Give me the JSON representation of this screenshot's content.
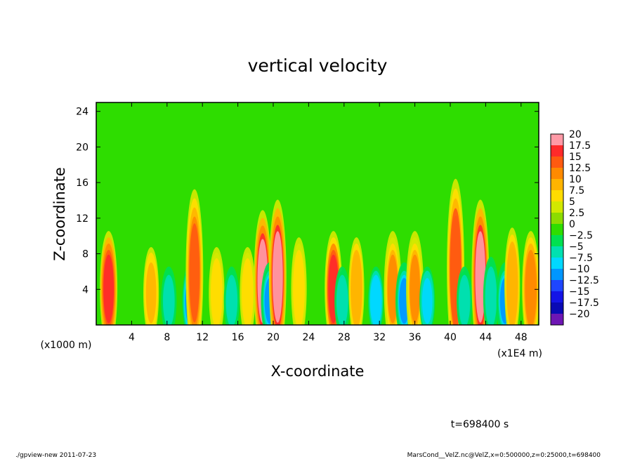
{
  "chart_data": {
    "type": "heatmap",
    "title": "vertical velocity",
    "xlabel": "X-coordinate",
    "ylabel": "Z-coordinate",
    "x_unit": "(x1E4 m)",
    "y_unit": "(x1000 m)",
    "xlim": [
      0,
      50
    ],
    "ylim": [
      0,
      25
    ],
    "x_ticks": [
      4,
      8,
      12,
      16,
      20,
      24,
      28,
      32,
      36,
      40,
      44,
      48
    ],
    "y_ticks": [
      4,
      8,
      12,
      16,
      20,
      24
    ],
    "colorbar": {
      "levels": [
        "20",
        "17.5",
        "15",
        "12.5",
        "10",
        "7.5",
        "5",
        "2.5",
        "0",
        "-2.5",
        "-5",
        "-7.5",
        "-10",
        "-12.5",
        "-15",
        "-17.5",
        "-20"
      ],
      "colors": [
        "#ff9aa6",
        "#ff2a2a",
        "#ff5a10",
        "#ff8a00",
        "#ffb400",
        "#ffdc00",
        "#d2e800",
        "#8cdc00",
        "#2edd00",
        "#00e050",
        "#00e0b0",
        "#00d8ff",
        "#0096ff",
        "#1e46ff",
        "#1414e6",
        "#0a0ab4",
        "#6e16b4"
      ]
    },
    "features": [
      {
        "x": 1.4,
        "amp": 17,
        "height": 9
      },
      {
        "x": 6.2,
        "amp": 8,
        "height": 8
      },
      {
        "x": 8.2,
        "amp": -7,
        "height": 6
      },
      {
        "x": 10.7,
        "amp": -12,
        "height": 6
      },
      {
        "x": 11.1,
        "amp": 14,
        "height": 13
      },
      {
        "x": 13.6,
        "amp": 6,
        "height": 8
      },
      {
        "x": 15.3,
        "amp": -6,
        "height": 6
      },
      {
        "x": 17.1,
        "amp": 7,
        "height": 8
      },
      {
        "x": 18.8,
        "amp": 18,
        "height": 11
      },
      {
        "x": 19.6,
        "amp": -10,
        "height": 6
      },
      {
        "x": 20.5,
        "amp": 18,
        "height": 12
      },
      {
        "x": 22.9,
        "amp": 7,
        "height": 9
      },
      {
        "x": 26.8,
        "amp": 16,
        "height": 9
      },
      {
        "x": 27.8,
        "amp": -7,
        "height": 6
      },
      {
        "x": 29.4,
        "amp": 9,
        "height": 9
      },
      {
        "x": 31.6,
        "amp": -9,
        "height": 6
      },
      {
        "x": 33.5,
        "amp": 11,
        "height": 9
      },
      {
        "x": 34.8,
        "amp": -10,
        "height": 6
      },
      {
        "x": 36.0,
        "amp": 11,
        "height": 9
      },
      {
        "x": 37.4,
        "amp": -8,
        "height": 6
      },
      {
        "x": 40.6,
        "amp": 15,
        "height": 14
      },
      {
        "x": 41.6,
        "amp": -7,
        "height": 6
      },
      {
        "x": 43.4,
        "amp": 18,
        "height": 12
      },
      {
        "x": 44.6,
        "amp": -6,
        "height": 7
      },
      {
        "x": 46.2,
        "amp": -10,
        "height": 6
      },
      {
        "x": 47.0,
        "amp": 9,
        "height": 10
      },
      {
        "x": 49.1,
        "amp": 12,
        "height": 9
      }
    ]
  },
  "footer": {
    "time_label": "t=698400 s",
    "program": "./gpview-new   2011-07-23",
    "source": "MarsCond__VelZ.nc@VelZ,x=0:500000,z=0:25000,t=698400"
  }
}
